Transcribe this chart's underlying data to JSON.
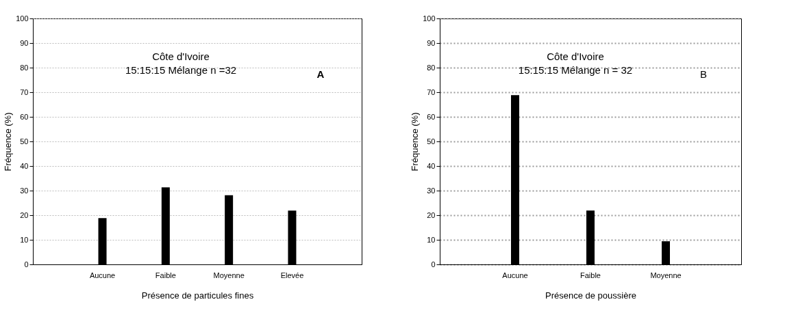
{
  "chart_data": [
    {
      "type": "bar",
      "title": "Côte d'Ivoire",
      "subtitle": "15:15:15 Mélange n =32",
      "xlabel": "Présence de particules fines",
      "ylabel": "Fréquence (%)",
      "categories": [
        "Aucune",
        "Faible",
        "Moyenne",
        "Elevée"
      ],
      "values": [
        18.8,
        31.3,
        28.1,
        21.9
      ],
      "color": "#000000",
      "ylim": [
        0,
        100
      ],
      "yticks": [
        0,
        10,
        20,
        30,
        40,
        50,
        60,
        70,
        80,
        90,
        100
      ],
      "grid": "y",
      "annotations": [
        "A"
      ]
    },
    {
      "type": "bar",
      "title": "Côte d'Ivoire",
      "subtitle": "15:15:15 Mélange n = 32",
      "xlabel": "Présence de poussière",
      "ylabel": "Fréquence (%)",
      "categories": [
        "Aucune",
        "Faible",
        "Moyenne"
      ],
      "values": [
        68.8,
        21.9,
        9.4
      ],
      "color": "#000000",
      "ylim": [
        0,
        100
      ],
      "yticks": [
        0,
        10,
        20,
        30,
        40,
        50,
        60,
        70,
        80,
        90,
        100
      ],
      "grid": "y",
      "annotations": [
        "B"
      ]
    }
  ]
}
